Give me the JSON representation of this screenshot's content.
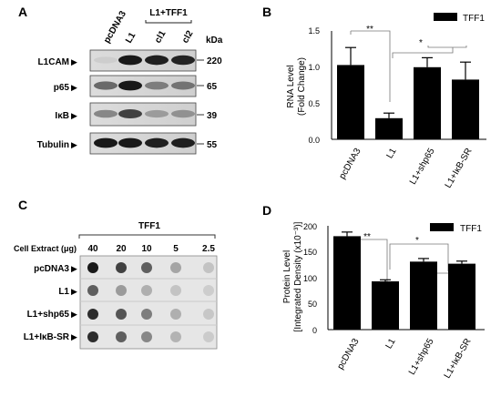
{
  "panel_a": {
    "letter": "A",
    "lane_labels": [
      "pcDNA3",
      "L1",
      "cl1",
      "cl2"
    ],
    "group_label": "L1+TFF1",
    "kda_header": "kDa",
    "rows": [
      {
        "name": "L1CAM",
        "kda": "220",
        "intensity": [
          0.05,
          0.95,
          0.92,
          0.9
        ]
      },
      {
        "name": "p65",
        "kda": "65",
        "intensity": [
          0.55,
          0.95,
          0.45,
          0.5
        ]
      },
      {
        "name": "IκB",
        "kda": "39",
        "intensity": [
          0.4,
          0.75,
          0.3,
          0.35
        ]
      },
      {
        "name": "Tubulin",
        "kda": "55",
        "intensity": [
          0.95,
          0.95,
          0.92,
          0.92
        ]
      }
    ]
  },
  "panel_b": {
    "letter": "B",
    "legend": "TFF1",
    "ylabel_1": "RNA Level",
    "ylabel_2": "(Fold Change)",
    "y_ticks": [
      "0.0",
      "0.5",
      "1.0",
      "1.5"
    ],
    "sig_1": "**",
    "sig_2": "*"
  },
  "panel_c": {
    "letter": "C",
    "title": "TFF1",
    "extract_label": "Cell Extract (μg)",
    "amounts": [
      "40",
      "20",
      "10",
      "5",
      "2.5"
    ],
    "row_labels": [
      "pcDNA3",
      "L1",
      "L1+shp65",
      "L1+IκB-SR"
    ],
    "dot_intensity": [
      [
        0.95,
        0.75,
        0.6,
        0.25,
        0.1
      ],
      [
        0.6,
        0.3,
        0.2,
        0.1,
        0.05
      ],
      [
        0.85,
        0.65,
        0.45,
        0.2,
        0.08
      ],
      [
        0.85,
        0.6,
        0.4,
        0.18,
        0.06
      ]
    ]
  },
  "panel_d": {
    "letter": "D",
    "legend": "TFF1",
    "ylabel_1": "Protein Level",
    "ylabel_2": "[Integrated Density (x10⁻³)]",
    "y_ticks": [
      "0",
      "50",
      "100",
      "150",
      "200"
    ],
    "sig_1": "**",
    "sig_2": "*"
  },
  "chart_data": [
    {
      "type": "bar",
      "categories": [
        "pcDNA3",
        "L1",
        "L1+shp65",
        "L1+IκB-SR"
      ],
      "series": [
        {
          "name": "TFF1",
          "values": [
            1.02,
            0.29,
            0.99,
            0.82
          ],
          "errors": [
            0.24,
            0.07,
            0.13,
            0.24
          ]
        }
      ],
      "xlabel": "",
      "ylabel": "RNA Level (Fold Change)",
      "ylim": [
        0,
        1.5
      ],
      "legend": "top-right"
    },
    {
      "type": "bar",
      "categories": [
        "pcDNA3",
        "L1",
        "L1+shp65",
        "L1+IκB-SR"
      ],
      "series": [
        {
          "name": "TFF1",
          "values": [
            180,
            93,
            131,
            127
          ],
          "errors": [
            8,
            3,
            6,
            5
          ]
        }
      ],
      "xlabel": "",
      "ylabel": "Protein Level [Integrated Density (x10⁻³)]",
      "ylim": [
        0,
        200
      ],
      "legend": "top-right"
    }
  ]
}
